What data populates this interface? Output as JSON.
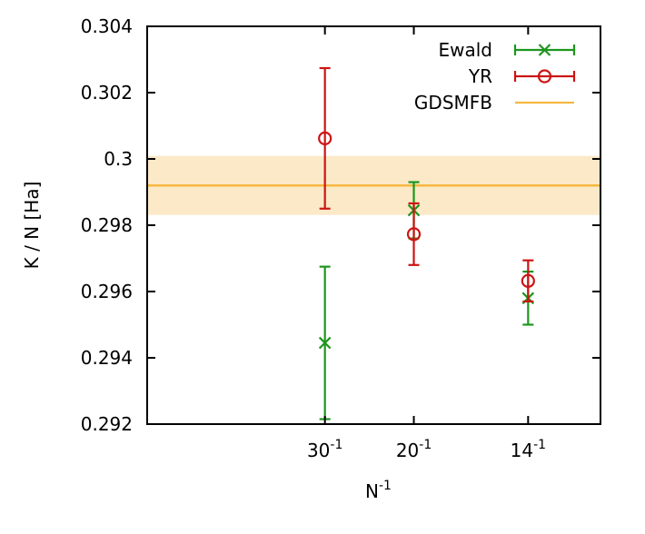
{
  "chart_data": {
    "type": "scatter",
    "title": "",
    "ylabel": "K / N [Ha]",
    "xlabel": {
      "base": "N",
      "sup": "-1"
    },
    "ylim": [
      0.292,
      0.304
    ],
    "xlim": [
      0.0,
      0.085
    ],
    "y_ticks": [
      {
        "value": 0.292,
        "label": "0.292"
      },
      {
        "value": 0.294,
        "label": "0.294"
      },
      {
        "value": 0.296,
        "label": "0.296"
      },
      {
        "value": 0.298,
        "label": "0.298"
      },
      {
        "value": 0.3,
        "label": "0.3"
      },
      {
        "value": 0.302,
        "label": "0.302"
      },
      {
        "value": 0.304,
        "label": "0.304"
      }
    ],
    "x_ticks": [
      {
        "value": 0.03333,
        "base": "30",
        "sup": "-1"
      },
      {
        "value": 0.05,
        "base": "20",
        "sup": "-1"
      },
      {
        "value": 0.07143,
        "base": "14",
        "sup": "-1"
      }
    ],
    "legend_position": "top-right",
    "series": [
      {
        "name": "Ewald",
        "marker": "x",
        "color": "#1e961e",
        "points": [
          {
            "x": 0.03333,
            "y": 0.29445,
            "err": 0.0023
          },
          {
            "x": 0.05,
            "y": 0.29845,
            "err": 0.00085
          },
          {
            "x": 0.07143,
            "y": 0.2958,
            "err": 0.0008
          }
        ]
      },
      {
        "name": "YR",
        "marker": "circle",
        "color": "#cc1414",
        "points": [
          {
            "x": 0.03333,
            "y": 0.30062,
            "err": 0.00212
          },
          {
            "x": 0.05,
            "y": 0.29773,
            "err": 0.00093
          },
          {
            "x": 0.07143,
            "y": 0.29632,
            "err": 0.00062
          }
        ]
      }
    ],
    "reference": {
      "name": "GDSMFB",
      "color": "#f5b840",
      "band_color": "#fbe9c8",
      "value": 0.2992,
      "band": [
        0.29831,
        0.30009
      ]
    }
  }
}
